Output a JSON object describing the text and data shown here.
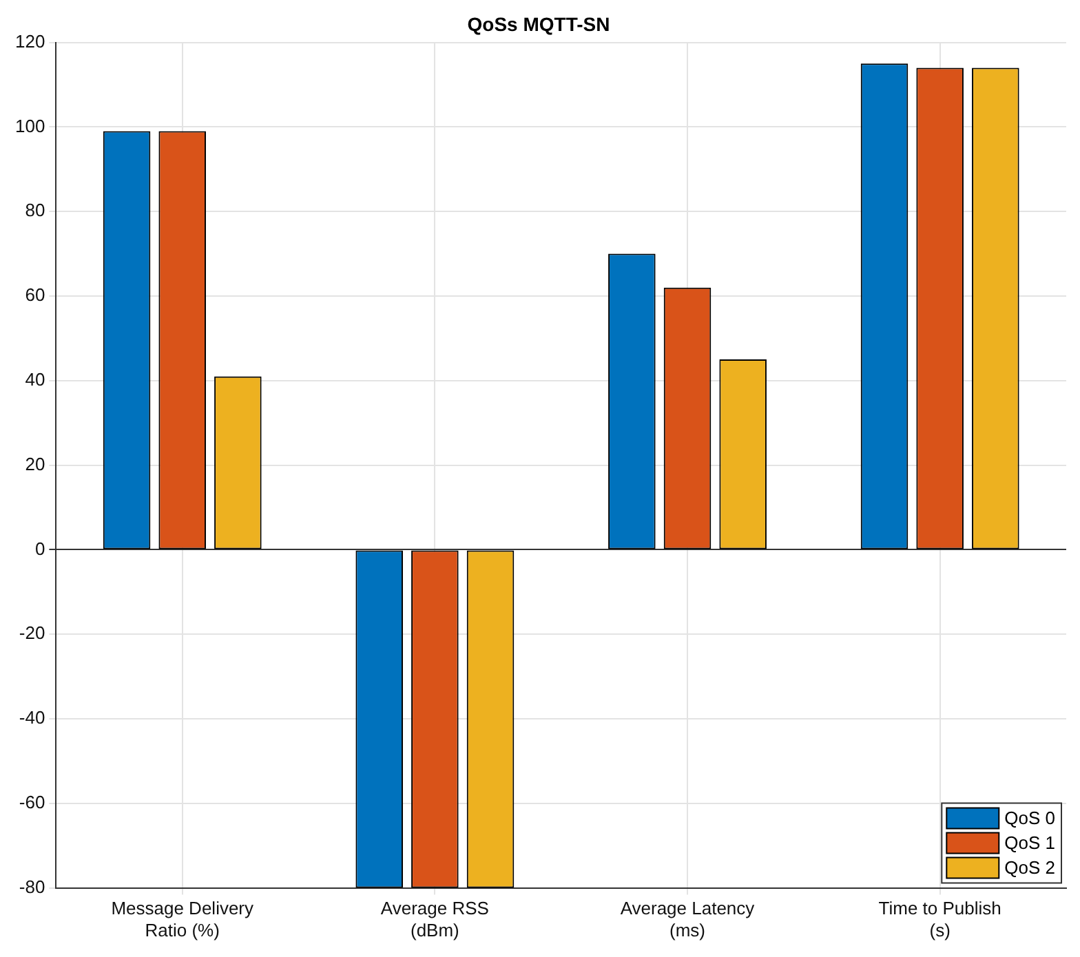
{
  "chart_data": {
    "type": "bar",
    "title": "QoSs MQTT-SN",
    "categories": [
      "Message Delivery\nRatio (%)",
      "Average RSS\n(dBm)",
      "Average Latency\n(ms)",
      "Time to Publish\n(s)"
    ],
    "series": [
      {
        "name": "QoS 0",
        "color": "#0072bd",
        "values": [
          99,
          -80,
          70,
          115
        ]
      },
      {
        "name": "QoS 1",
        "color": "#d95319",
        "values": [
          99,
          -80,
          62,
          114
        ]
      },
      {
        "name": "QoS 2",
        "color": "#edb120",
        "values": [
          41,
          -80,
          45,
          114
        ]
      }
    ],
    "ylim": [
      -80,
      120
    ],
    "yticks": [
      -80,
      -60,
      -40,
      -20,
      0,
      20,
      40,
      60,
      80,
      100,
      120
    ],
    "grid": true,
    "legend": "bottom right"
  }
}
